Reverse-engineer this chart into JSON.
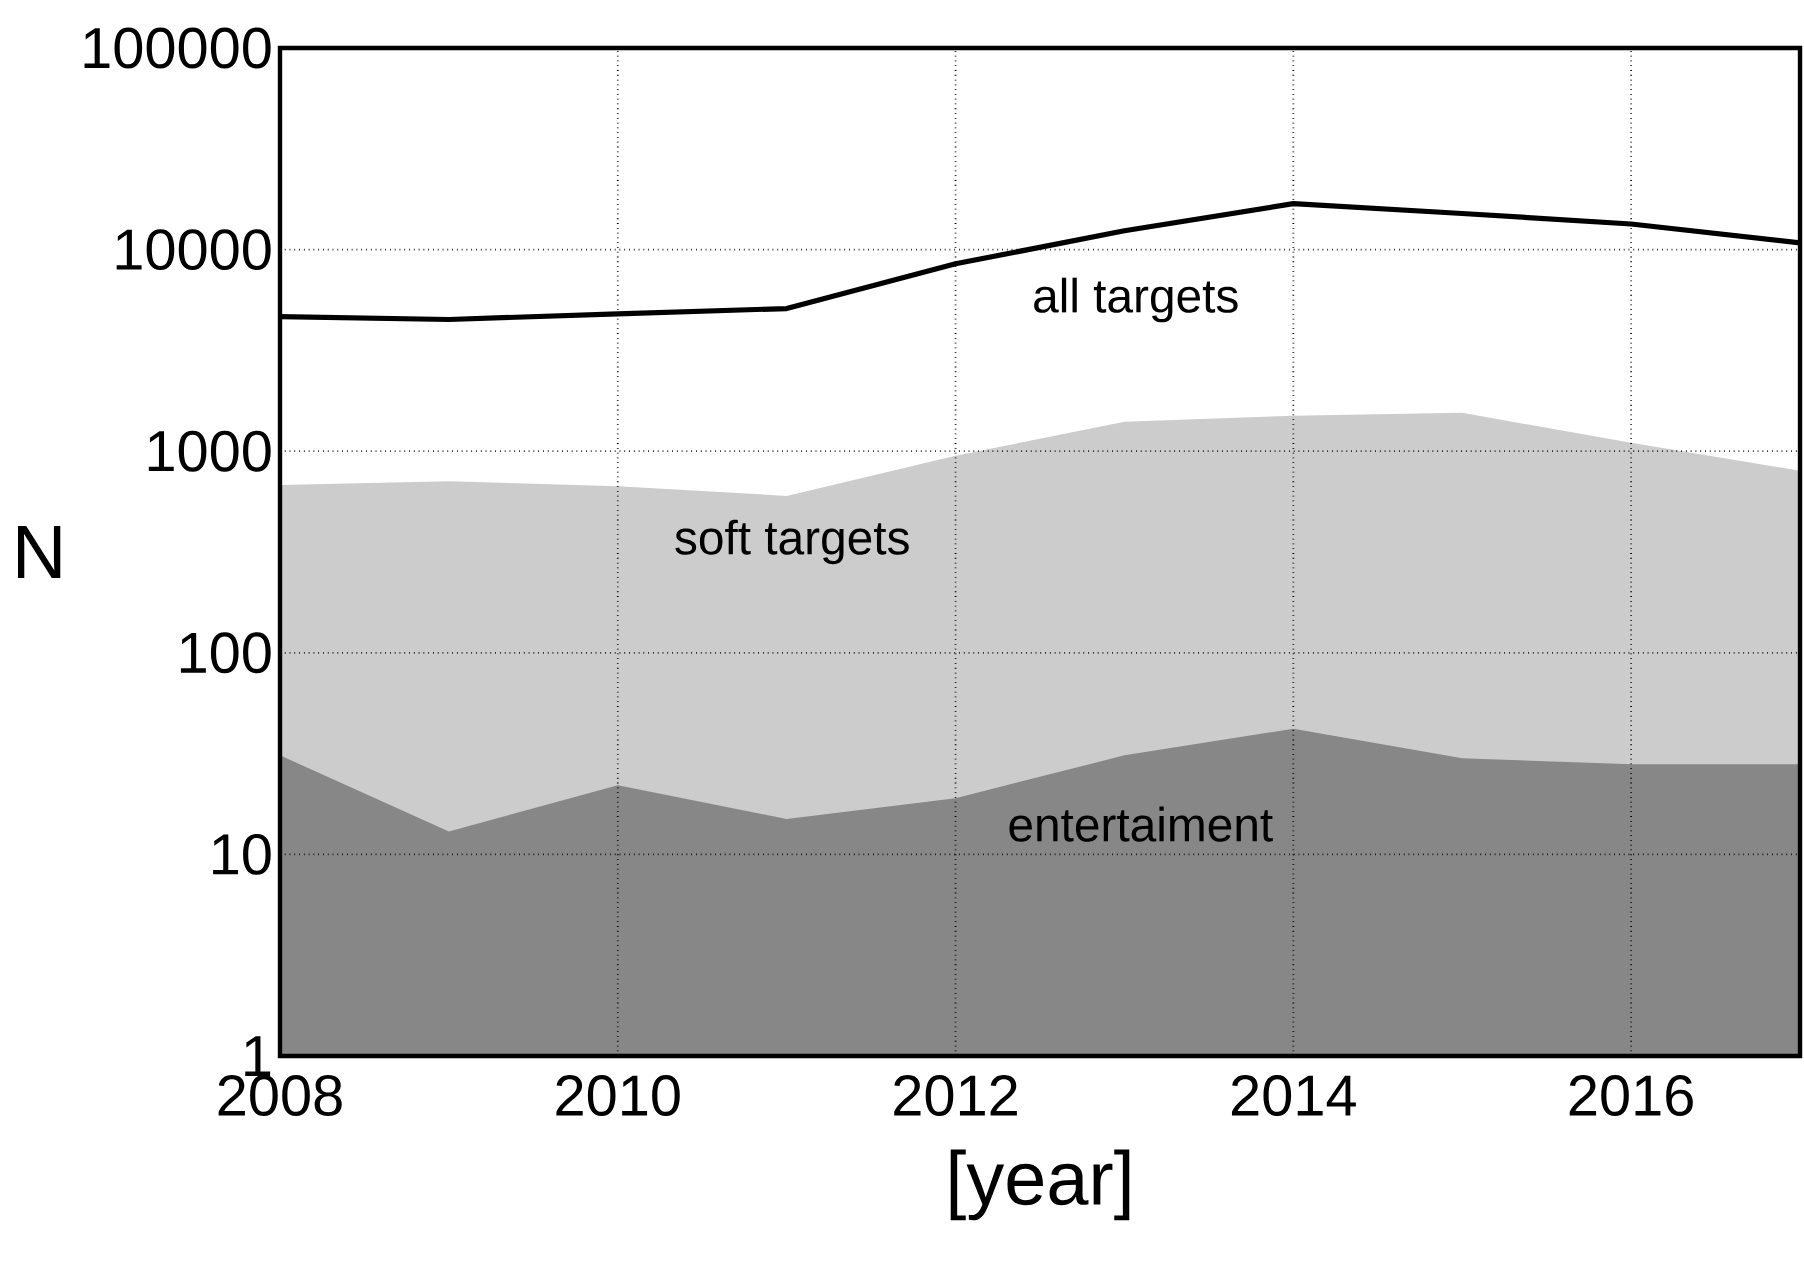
{
  "chart_data": {
    "type": "area",
    "xlabel": "[year]",
    "ylabel": "N",
    "log": "y",
    "grid": true,
    "x": [
      2008,
      2009,
      2010,
      2011,
      2012,
      2013,
      2014,
      2015,
      2016,
      2017
    ],
    "xlim": [
      2008,
      2017
    ],
    "xticks": [
      2008,
      2010,
      2012,
      2014,
      2016
    ],
    "ylim": [
      1,
      100000
    ],
    "yticks": [
      1,
      10,
      100,
      1000,
      10000,
      100000
    ],
    "series": [
      {
        "name": "soft targets",
        "color": "#cccccc",
        "values": [
          680,
          710,
          670,
          600,
          950,
          1400,
          1500,
          1550,
          1100,
          800
        ]
      },
      {
        "name": "entertaiment",
        "color": "#878787",
        "values": [
          31,
          13,
          22,
          15,
          19,
          31,
          42,
          30,
          28,
          28
        ]
      },
      {
        "name": "all targets",
        "type": "line",
        "color": "#000000",
        "values": [
          4650,
          4500,
          4800,
          5100,
          8500,
          12400,
          16900,
          15100,
          13400,
          10800
        ]
      }
    ]
  }
}
